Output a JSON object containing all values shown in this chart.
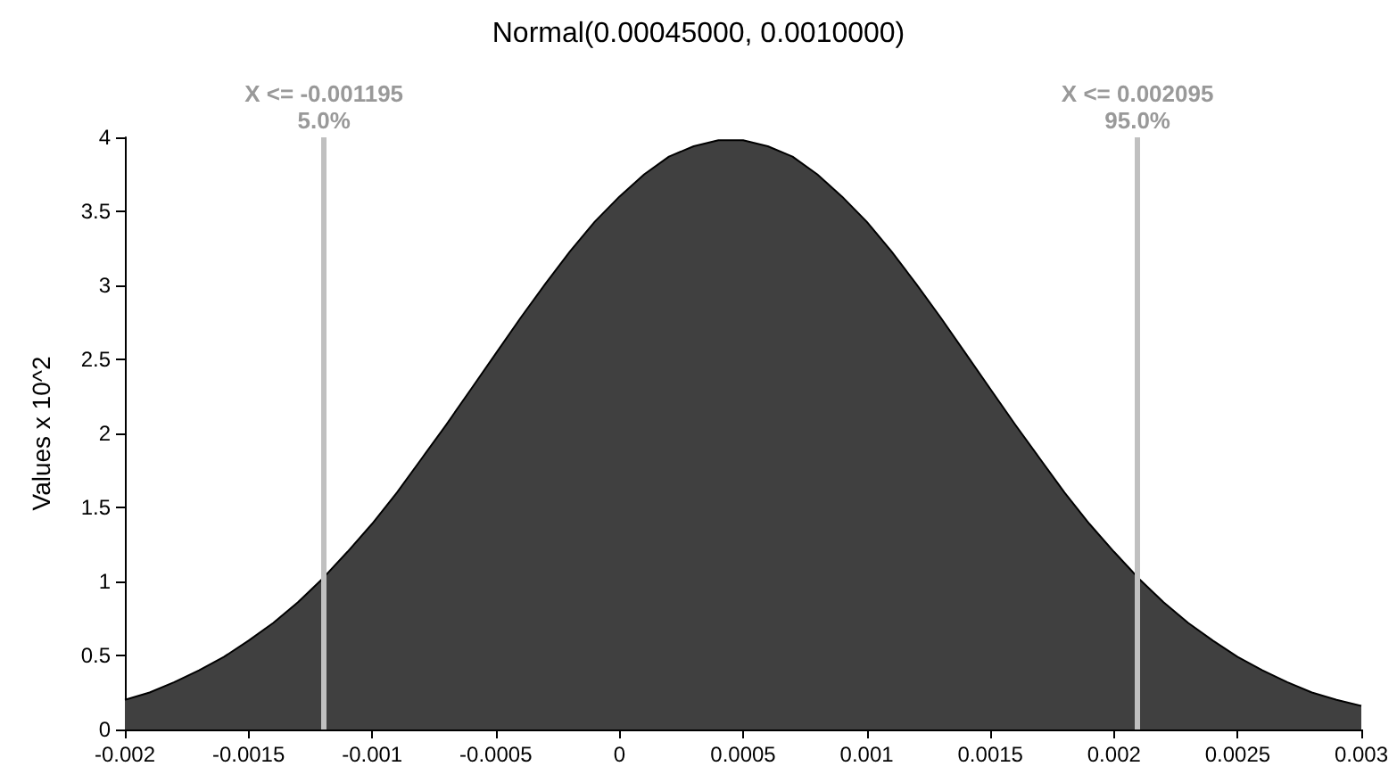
{
  "chart_data": {
    "type": "area",
    "title": "Normal(0.00045000, 0.0010000)",
    "ylabel": "Values x 10^2",
    "x": [
      -0.002,
      -0.0019,
      -0.0018,
      -0.0017,
      -0.0016,
      -0.0015,
      -0.0014,
      -0.0013,
      -0.0012,
      -0.0011,
      -0.001,
      -0.0009,
      -0.0008,
      -0.0007,
      -0.0006,
      -0.0005,
      -0.0004,
      -0.0003,
      -0.0002,
      -0.0001,
      0,
      0.0001,
      0.0002,
      0.0003,
      0.0004,
      0.0005,
      0.0006,
      0.0007,
      0.0008,
      0.0009,
      0.001,
      0.0011,
      0.0012,
      0.0013,
      0.0014,
      0.0015,
      0.0016,
      0.0017,
      0.0018,
      0.0019,
      0.002,
      0.0021,
      0.0022,
      0.0023,
      0.0024,
      0.0025,
      0.0026,
      0.0027,
      0.0028,
      0.0029,
      0.003
    ],
    "series": [
      {
        "color": "#404040",
        "values": [
          0.2,
          0.25,
          0.32,
          0.4,
          0.49,
          0.6,
          0.72,
          0.86,
          1.02,
          1.2,
          1.39,
          1.6,
          1.83,
          2.06,
          2.3,
          2.54,
          2.78,
          3.01,
          3.23,
          3.43,
          3.6,
          3.75,
          3.87,
          3.94,
          3.98,
          3.98,
          3.94,
          3.87,
          3.75,
          3.6,
          3.43,
          3.23,
          3.01,
          2.78,
          2.54,
          2.3,
          2.06,
          1.83,
          1.6,
          1.39,
          1.2,
          1.02,
          0.86,
          0.72,
          0.6,
          0.49,
          0.4,
          0.32,
          0.25,
          0.2,
          0.16
        ]
      }
    ],
    "xlim": [
      -0.002,
      0.003
    ],
    "xticks": [
      -0.002,
      -0.0015,
      -0.001,
      -0.0005,
      0,
      0.0005,
      0.001,
      0.0015,
      0.002,
      0.0025,
      0.003
    ],
    "ylim": [
      0,
      4
    ],
    "yticks": [
      0,
      0.5,
      1,
      1.5,
      2,
      2.5,
      3,
      3.5,
      4
    ],
    "ref_lines": [
      {
        "axis": "x",
        "value": -0.001195,
        "label": "X <= -0.001195\n5.0%",
        "color": "#c0c0c0"
      },
      {
        "axis": "x",
        "value": 0.002095,
        "label": "X <= 0.002095\n95.0%",
        "color": "#c0c0c0"
      }
    ],
    "grid": false,
    "marker": "none",
    "line_style": "solid"
  }
}
